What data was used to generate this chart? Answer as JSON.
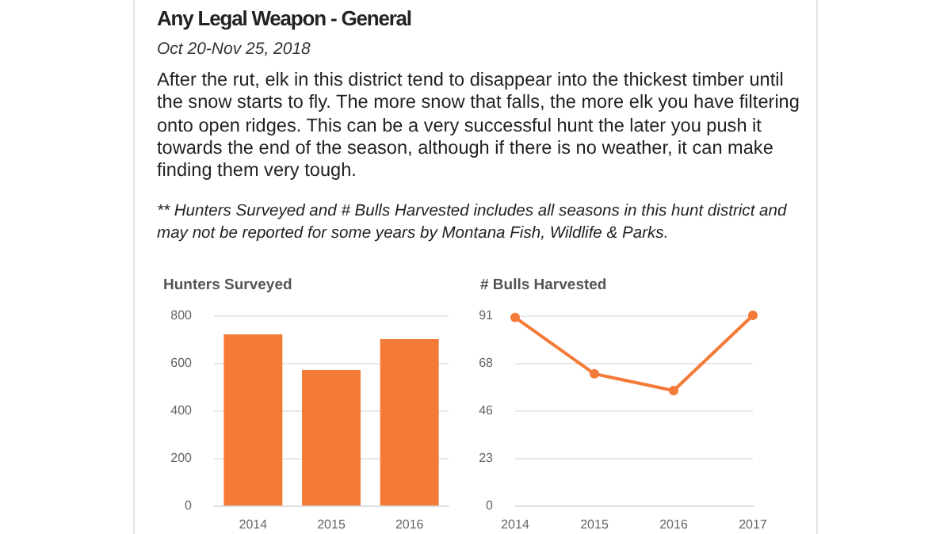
{
  "chart_data": [
    {
      "type": "other",
      "title": "Any Legal Weapon - General",
      "subtitle": "Oct 20-Nov 25, 2018",
      "annotations": [
        "After the rut, elk in this district tend to disappear into the thickest timber until the snow starts to fly. The more snow that falls, the more elk you have filtering onto open ridges. This can be a very successful hunt the later you push it towards the end of the season, although if there is no weather, it can make finding them very tough.",
        "** Hunters Surveyed and # Bulls Harvested includes all seasons in this hunt district and may not be reported for some years by Montana Fish, Wildlife & Parks."
      ]
    },
    {
      "type": "bar",
      "title": "Hunters Surveyed",
      "categories": [
        "2014",
        "2015",
        "2016"
      ],
      "values": [
        720,
        570,
        700
      ],
      "color": "#f47a38",
      "ylim": [
        0,
        800
      ],
      "yticks": [
        0,
        200,
        400,
        600,
        800
      ],
      "grid": "y"
    },
    {
      "type": "line",
      "title": "# Bulls Harvested",
      "categories": [
        "2014",
        "2015",
        "2016",
        "2017"
      ],
      "values": [
        90,
        63,
        55,
        91
      ],
      "color": "#f47a38",
      "marker": "circle",
      "ylim": [
        0,
        91
      ],
      "yticks": [
        0,
        {
          "value": 22.75,
          "label": "23"
        },
        {
          "value": 45.5,
          "label": "46"
        },
        {
          "value": 68.25,
          "label": "68"
        },
        91
      ],
      "grid": "y"
    }
  ]
}
